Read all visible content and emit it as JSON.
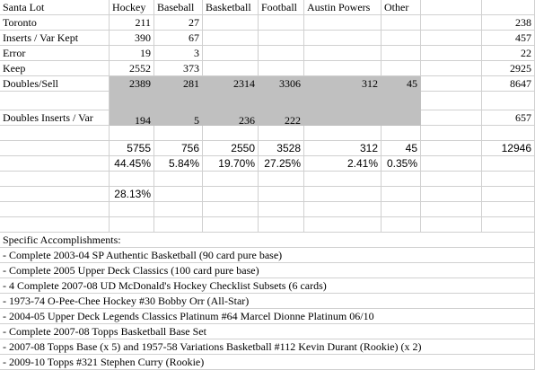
{
  "header": [
    "Santa Lot",
    "Hockey",
    "Baseball",
    "Basketball",
    "Football",
    "Austin Powers",
    "Other",
    "",
    ""
  ],
  "rows": [
    [
      "Toronto",
      "211",
      "27",
      "",
      "",
      "",
      "",
      "",
      "238"
    ],
    [
      "Inserts / Var Kept",
      "390",
      "67",
      "",
      "",
      "",
      "",
      "",
      "457"
    ],
    [
      "Error",
      "19",
      "3",
      "",
      "",
      "",
      "",
      "",
      "22"
    ],
    [
      "Keep",
      "2552",
      "373",
      "",
      "",
      "",
      "",
      "",
      "2925"
    ],
    [
      "Doubles/Sell",
      "2389",
      "281",
      "2314",
      "3306",
      "312",
      "45",
      "",
      "8647"
    ],
    [
      "",
      "",
      "",
      "",
      "",
      "",
      "",
      "",
      ""
    ],
    [
      "Doubles Inserts / Var",
      "194",
      "5",
      "236",
      "222",
      "",
      "",
      "",
      "657"
    ],
    [
      "",
      "",
      "",
      "",
      "",
      "",
      "",
      "",
      ""
    ],
    [
      "",
      "5755",
      "756",
      "2550",
      "3528",
      "312",
      "45",
      "",
      "12946"
    ],
    [
      "",
      "44.45%",
      "5.84%",
      "19.70%",
      "27.25%",
      "2.41%",
      "0.35%",
      "",
      ""
    ],
    [
      "",
      "",
      "",
      "",
      "",
      "",
      "",
      "",
      ""
    ],
    [
      "",
      "28.13%",
      "",
      "",
      "",
      "",
      "",
      "",
      ""
    ],
    [
      "",
      "",
      "",
      "",
      "",
      "",
      "",
      "",
      ""
    ],
    [
      "",
      "",
      "",
      "",
      "",
      "",
      "",
      "",
      ""
    ],
    [
      "Specific Accomplishments:",
      "",
      "",
      "",
      "",
      "",
      "",
      "",
      ""
    ],
    [
      "- Complete 2003-04 SP Authentic Basketball (90 card pure base)",
      "",
      "",
      "",
      "",
      "",
      "",
      "",
      ""
    ],
    [
      "- Complete 2005 Upper Deck Classics (100 card pure base)",
      "",
      "",
      "",
      "",
      "",
      "",
      "",
      ""
    ],
    [
      "- 4 Complete 2007-08 UD McDonald's Hockey Checklist Subsets (6 cards)",
      "",
      "",
      "",
      "",
      "",
      "",
      "",
      ""
    ],
    [
      "- 1973-74 O-Pee-Chee Hockey #30 Bobby Orr (All-Star)",
      "",
      "",
      "",
      "",
      "",
      "",
      "",
      ""
    ],
    [
      "- 2004-05 Upper Deck Legends Classics Platinum #64 Marcel Dionne Platinum 06/10",
      "",
      "",
      "",
      "",
      "",
      "",
      "",
      ""
    ],
    [
      "- Complete 2007-08 Topps Basketball Base Set",
      "",
      "",
      "",
      "",
      "",
      "",
      "",
      ""
    ],
    [
      "- 2007-08 Topps Base (x 5) and 1957-58 Variations Basketball  #112 Kevin Durant (Rookie) (x 2)",
      "",
      "",
      "",
      "",
      "",
      "",
      "",
      ""
    ],
    [
      "- 2009-10 Topps #321 Stephen Curry (Rookie)",
      "",
      "",
      "",
      "",
      "",
      "",
      "",
      ""
    ]
  ]
}
